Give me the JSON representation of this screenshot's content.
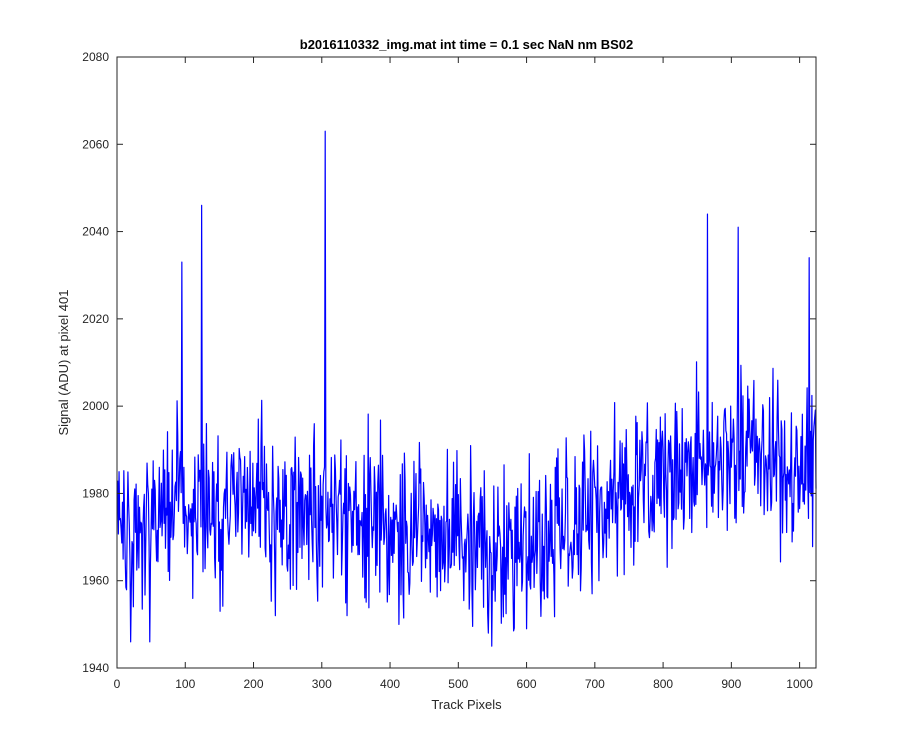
{
  "chart_data": {
    "type": "line",
    "title": "b2016110332_img.mat int time = 0.1 sec  NaN nm BS02",
    "xlabel": "Track Pixels",
    "ylabel": "Signal (ADU) at pixel 401",
    "xlim": [
      0,
      1024
    ],
    "ylim": [
      1940,
      2080
    ],
    "xticks": [
      0,
      100,
      200,
      300,
      400,
      500,
      600,
      700,
      800,
      900,
      1000
    ],
    "yticks": [
      1940,
      1960,
      1980,
      2000,
      2020,
      2040,
      2060,
      2080
    ],
    "grid": false,
    "legend": "none",
    "line_color": "#0000ff",
    "series": [
      {
        "x": [
          1,
          16,
          32,
          48,
          64,
          80,
          96,
          112,
          124,
          128,
          144,
          160,
          176,
          192,
          208,
          224,
          240,
          256,
          272,
          288,
          305,
          320,
          336,
          352,
          368,
          384,
          400,
          416,
          432,
          448,
          464,
          480,
          496,
          512,
          528,
          544,
          549,
          560,
          576,
          592,
          608,
          624,
          640,
          656,
          672,
          688,
          704,
          720,
          736,
          752,
          768,
          784,
          800,
          816,
          832,
          848,
          863,
          880,
          896,
          912,
          928,
          944,
          960,
          976,
          992,
          1008,
          1014,
          1024
        ],
        "values": [
          1978,
          1973,
          1968,
          1975,
          1972,
          1980,
          1982,
          1977,
          1983,
          1979,
          1975,
          1978,
          1981,
          1976,
          1979,
          1974,
          1977,
          1975,
          1973,
          1978,
          1976,
          1974,
          1975,
          1972,
          1973,
          1976,
          1971,
          1970,
          1974,
          1972,
          1969,
          1971,
          1973,
          1968,
          1970,
          1967,
          1966,
          1969,
          1968,
          1967,
          1970,
          1969,
          1972,
          1974,
          1976,
          1975,
          1978,
          1980,
          1979,
          1982,
          1983,
          1981,
          1984,
          1986,
          1985,
          1987,
          1988,
          1990,
          1986,
          1988,
          1989,
          1987,
          1985,
          1988,
          1986,
          1984,
          1986,
          1985
        ],
        "peaks": [
          [
            20,
            1946
          ],
          [
            48,
            1946
          ],
          [
            95,
            2033
          ],
          [
            124,
            2046
          ],
          [
            151,
            1953
          ],
          [
            232,
            1952
          ],
          [
            305,
            2063
          ],
          [
            337,
            1952
          ],
          [
            413,
            1950
          ],
          [
            549,
            1945
          ],
          [
            600,
            1949
          ],
          [
            865,
            2044
          ],
          [
            910,
            2041
          ],
          [
            1014,
            2034
          ]
        ]
      }
    ]
  }
}
